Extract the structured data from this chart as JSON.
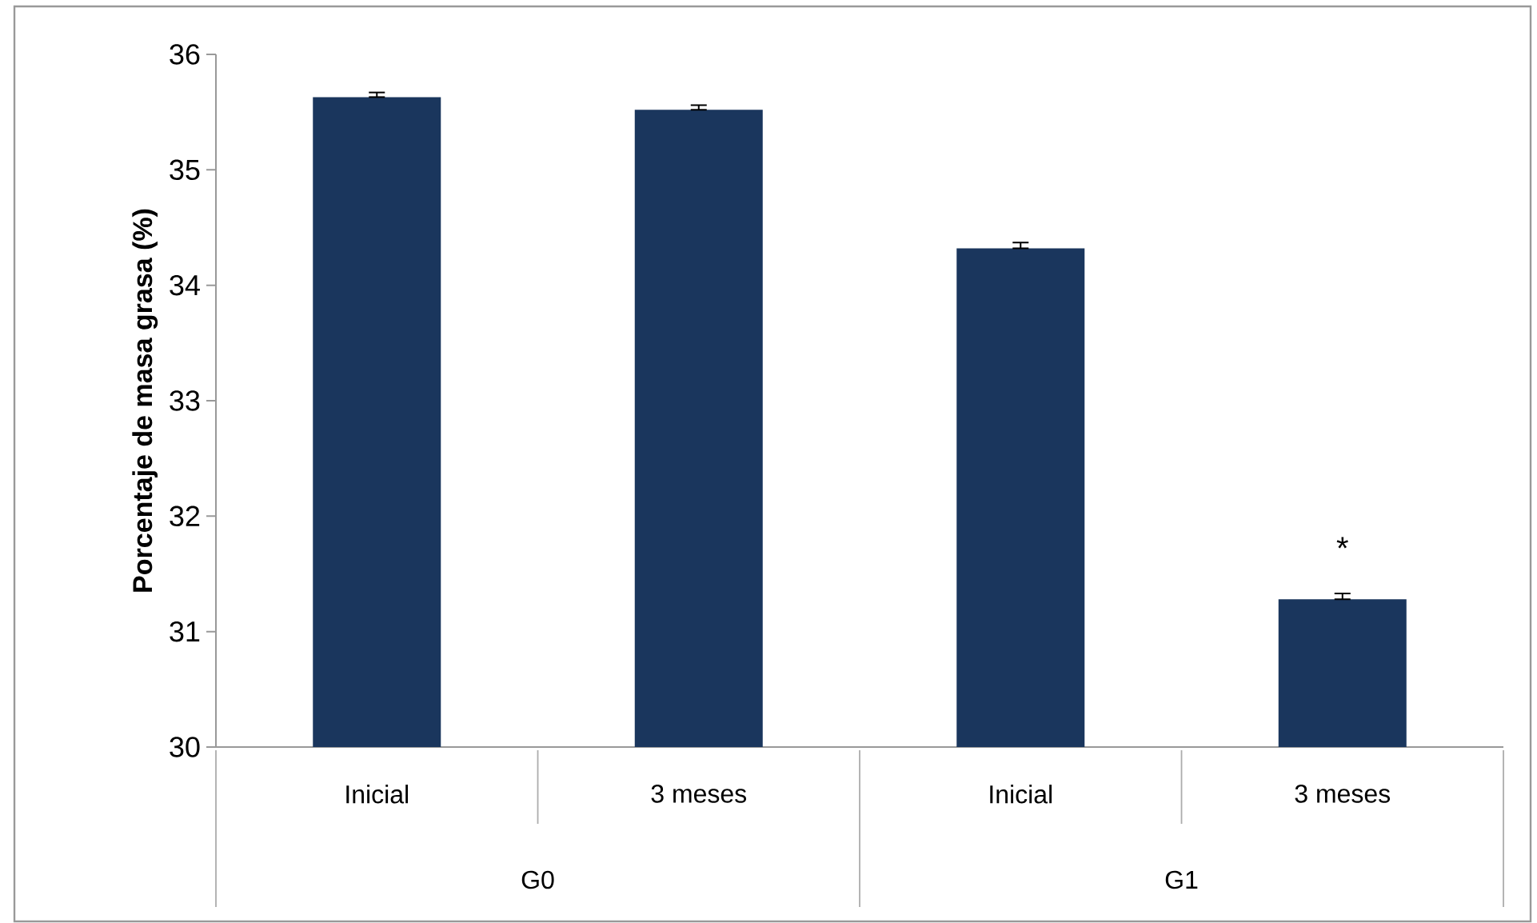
{
  "chart_data": {
    "type": "bar",
    "ylabel": "Porcentaje de masa grasa (%)",
    "categories": [
      "Inicial",
      "3 meses",
      "Inicial",
      "3 meses"
    ],
    "values": [
      35.63,
      35.52,
      34.32,
      31.28
    ],
    "errors": [
      [
        35.63,
        35.67
      ],
      [
        35.52,
        35.56
      ],
      [
        34.32,
        34.37
      ],
      [
        31.28,
        31.33
      ]
    ],
    "color": "#1a365d",
    "ylim": [
      30,
      36
    ],
    "yticks": [
      30,
      31,
      32,
      33,
      34,
      35,
      36
    ],
    "annotations": [
      "*",
      "G0",
      "G1"
    ]
  }
}
